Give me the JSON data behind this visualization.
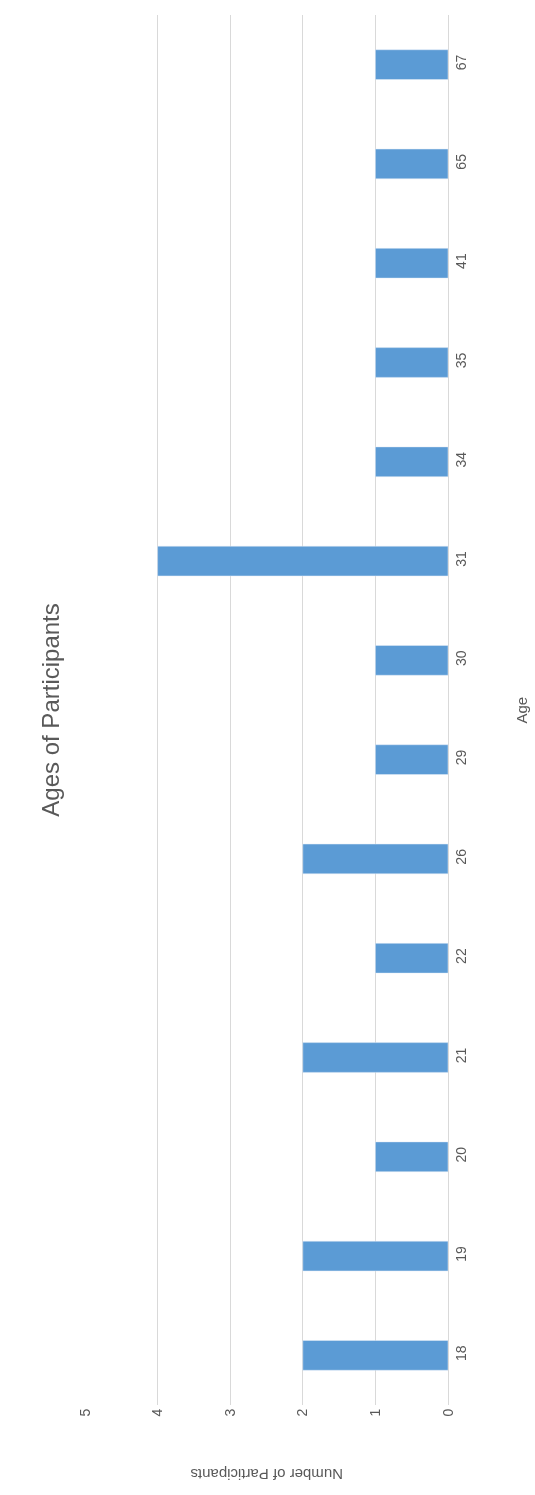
{
  "chart_data": {
    "type": "bar",
    "orientation": "horizontal",
    "title": "Ages of Participants",
    "xlabel": "Number of Participants",
    "ylabel": "Age",
    "categories": [
      "67",
      "65",
      "41",
      "35",
      "34",
      "31",
      "30",
      "29",
      "26",
      "22",
      "21",
      "20",
      "19",
      "18"
    ],
    "values": [
      1,
      1,
      1,
      1,
      1,
      4,
      1,
      1,
      2,
      1,
      2,
      1,
      2,
      2
    ],
    "color": "#5b9bd5",
    "xlim": [
      5,
      0
    ],
    "xticks": [
      0,
      1,
      2,
      3,
      4,
      5
    ],
    "grid": "x",
    "legend": false
  }
}
